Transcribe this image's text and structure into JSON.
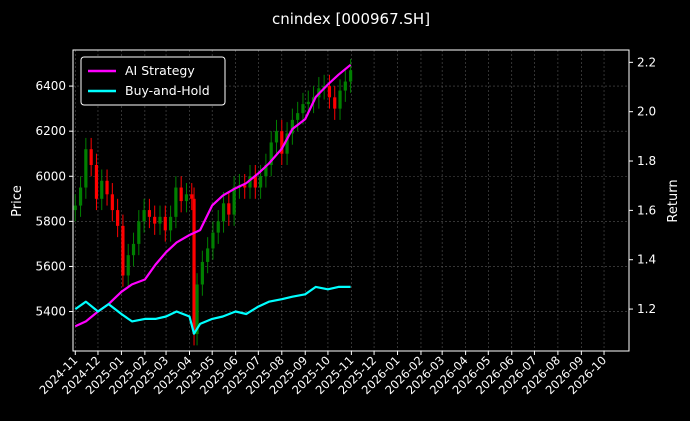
{
  "chart_data": {
    "type": "line",
    "title": "cnindex [000967.SH]",
    "ylabel_left": "Price",
    "ylabel_right": "Return",
    "ylim_left": [
      5225,
      6560
    ],
    "ylim_right": [
      1.03,
      2.25
    ],
    "left_ticks": [
      5400,
      5600,
      5800,
      6000,
      6200,
      6400
    ],
    "right_ticks": [
      1.2,
      1.4,
      1.6,
      1.8,
      2.0,
      2.2
    ],
    "x_ticks": [
      "2024-11",
      "2024-12",
      "2025-01",
      "2025-02",
      "2025-03",
      "2025-04",
      "2025-05",
      "2025-06",
      "2025-07",
      "2025-08",
      "2025-09",
      "2025-10",
      "2025-11",
      "2025-12",
      "2026-01",
      "2026-02",
      "2026-03",
      "2026-04",
      "2026-05",
      "2026-06",
      "2026-07",
      "2026-08",
      "2026-09",
      "2026-10"
    ],
    "grid": true,
    "legend_position": "top-left",
    "colors": {
      "ai": "#ff00ff",
      "bh": "#00ffff",
      "up": "#008000",
      "down": "#ff0000"
    },
    "series": [
      {
        "name": "AI Strategy",
        "axis": "right",
        "x": [
          "2024-11-01",
          "2024-11-15",
          "2024-12-01",
          "2024-12-15",
          "2025-01-01",
          "2025-01-15",
          "2025-02-01",
          "2025-02-15",
          "2025-03-01",
          "2025-03-15",
          "2025-04-01",
          "2025-04-15",
          "2025-05-01",
          "2025-05-15",
          "2025-06-01",
          "2025-06-15",
          "2025-07-01",
          "2025-07-15",
          "2025-08-01",
          "2025-08-15",
          "2025-09-01",
          "2025-09-15",
          "2025-10-01",
          "2025-10-15",
          "2025-10-31"
        ],
        "values": [
          1.13,
          1.15,
          1.19,
          1.22,
          1.27,
          1.3,
          1.32,
          1.38,
          1.43,
          1.47,
          1.5,
          1.52,
          1.62,
          1.66,
          1.69,
          1.71,
          1.75,
          1.79,
          1.85,
          1.93,
          1.97,
          2.06,
          2.11,
          2.15,
          2.19
        ]
      },
      {
        "name": "Buy-and-Hold",
        "axis": "right",
        "x": [
          "2024-11-01",
          "2024-11-15",
          "2024-12-01",
          "2024-12-15",
          "2025-01-01",
          "2025-01-15",
          "2025-02-01",
          "2025-02-15",
          "2025-03-01",
          "2025-03-15",
          "2025-04-01",
          "2025-04-07",
          "2025-04-15",
          "2025-05-01",
          "2025-05-15",
          "2025-06-01",
          "2025-06-15",
          "2025-07-01",
          "2025-07-15",
          "2025-08-01",
          "2025-08-15",
          "2025-09-01",
          "2025-09-15",
          "2025-10-01",
          "2025-10-15",
          "2025-10-31"
        ],
        "values": [
          1.2,
          1.23,
          1.19,
          1.22,
          1.18,
          1.15,
          1.16,
          1.16,
          1.17,
          1.19,
          1.17,
          1.1,
          1.14,
          1.16,
          1.17,
          1.19,
          1.18,
          1.21,
          1.23,
          1.24,
          1.25,
          1.26,
          1.29,
          1.28,
          1.29,
          1.29
        ]
      }
    ],
    "candles": {
      "x": [
        "2024-11-01",
        "2024-11-08",
        "2024-11-15",
        "2024-11-22",
        "2024-11-29",
        "2024-12-06",
        "2024-12-13",
        "2024-12-20",
        "2024-12-27",
        "2025-01-03",
        "2025-01-10",
        "2025-01-17",
        "2025-01-24",
        "2025-01-31",
        "2025-02-07",
        "2025-02-14",
        "2025-02-21",
        "2025-02-28",
        "2025-03-07",
        "2025-03-14",
        "2025-03-21",
        "2025-03-28",
        "2025-04-04",
        "2025-04-07",
        "2025-04-11",
        "2025-04-18",
        "2025-04-25",
        "2025-05-02",
        "2025-05-09",
        "2025-05-16",
        "2025-05-23",
        "2025-05-30",
        "2025-06-06",
        "2025-06-13",
        "2025-06-20",
        "2025-06-27",
        "2025-07-04",
        "2025-07-11",
        "2025-07-18",
        "2025-07-25",
        "2025-08-01",
        "2025-08-08",
        "2025-08-15",
        "2025-08-22",
        "2025-08-29",
        "2025-09-05",
        "2025-09-12",
        "2025-09-19",
        "2025-09-26",
        "2025-10-03",
        "2025-10-10",
        "2025-10-17",
        "2025-10-24",
        "2025-10-31"
      ],
      "close": [
        5870,
        5950,
        6120,
        6050,
        5900,
        5980,
        5920,
        5850,
        5780,
        5560,
        5650,
        5700,
        5800,
        5850,
        5820,
        5790,
        5820,
        5760,
        5820,
        5950,
        5890,
        5920,
        5900,
        5300,
        5520,
        5620,
        5680,
        5750,
        5800,
        5880,
        5830,
        5950,
        5960,
        5950,
        6000,
        5950,
        6000,
        6050,
        6150,
        6200,
        6100,
        6190,
        6250,
        6280,
        6320,
        6330,
        6350,
        6390,
        6400,
        6350,
        6300,
        6380,
        6420,
        6470
      ]
    }
  }
}
